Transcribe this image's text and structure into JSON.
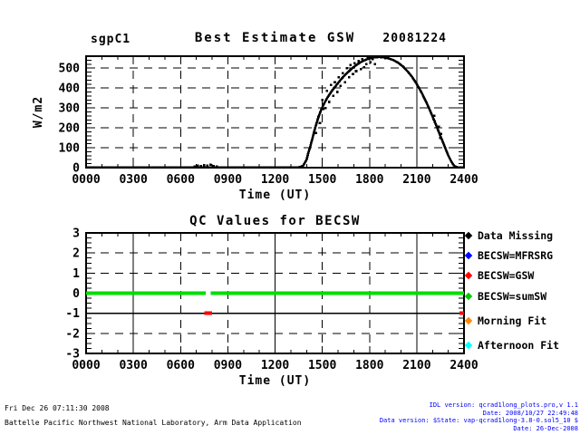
{
  "header": {
    "site": "sgpC1",
    "title": "Best Estimate GSW",
    "date": "20081224"
  },
  "top_plot": {
    "ylabel": "W/m2",
    "xlabel": "Time (UT)",
    "yticks": [
      "0",
      "100",
      "200",
      "300",
      "400",
      "500"
    ],
    "xticks": [
      "0000",
      "0300",
      "0600",
      "0900",
      "1200",
      "1500",
      "1800",
      "2100",
      "2400"
    ]
  },
  "bottom_plot": {
    "title": "QC Values for BECSW",
    "xlabel": "Time (UT)",
    "yticks": [
      "-3",
      "-2",
      "-1",
      "0",
      "1",
      "2",
      "3"
    ],
    "xticks": [
      "0000",
      "0300",
      "0600",
      "0900",
      "1200",
      "1500",
      "1800",
      "2100",
      "2400"
    ]
  },
  "legend": {
    "items": [
      {
        "label": "Data Missing",
        "color": "#000000"
      },
      {
        "label": "BECSW=MFRSRG",
        "color": "#0000FF"
      },
      {
        "label": "BECSW=GSW",
        "color": "#FF0000"
      },
      {
        "label": "BECSW=sumSW",
        "color": "#00CC00"
      },
      {
        "label": "Morning Fit",
        "color": "#FF8800"
      },
      {
        "label": "Afternoon Fit",
        "color": "#00FFFF"
      }
    ]
  },
  "footer": {
    "left_line1": "Fri Dec 26 07:11:30 2008",
    "left_line2": "Battelle Pacific Northwest National Laboratory, Arm Data Application",
    "right_color": "#0000FF",
    "right_lines": [
      "IDL version: qcrad1long_plots.pro,v 1.1",
      "Date: 2008/10/27 22:49:48",
      "Data version: $State: vap-qcrad1long-3.8-0.sol5_10 $",
      "Date: 26-Dec-2008"
    ]
  },
  "chart_data": [
    {
      "type": "line",
      "title": "Best Estimate GSW",
      "site": "sgpC1",
      "date_label": "20081224",
      "xlabel": "Time (UT)",
      "ylabel": "W/m2",
      "xlim": [
        0,
        24
      ],
      "ylim": [
        0,
        560
      ],
      "xtick_values": [
        0,
        3,
        6,
        9,
        12,
        15,
        18,
        21,
        24
      ],
      "xtick_labels": [
        "0000",
        "0300",
        "0600",
        "0900",
        "1200",
        "1500",
        "1800",
        "2100",
        "2400"
      ],
      "ytick_values": [
        0,
        100,
        200,
        300,
        400,
        500
      ],
      "ytick_labels": [
        "0",
        "100",
        "200",
        "300",
        "400",
        "500"
      ],
      "x_minor_step": 1,
      "y_minor_step": 20,
      "grid": {
        "h_dashed": [
          100,
          200,
          300,
          400,
          500
        ],
        "h_solid": [],
        "v_dashed": [
          3,
          6,
          9,
          12,
          15,
          18
        ],
        "v_solid": [
          21
        ]
      },
      "series": [
        {
          "name": "best-estimate-gsw",
          "color": "#000000",
          "width": 2.6,
          "points": [
            [
              0,
              1
            ],
            [
              13.4,
              1
            ],
            [
              13.6,
              3
            ],
            [
              13.8,
              12
            ],
            [
              14.0,
              40
            ],
            [
              14.1,
              70
            ],
            [
              14.25,
              110
            ],
            [
              14.4,
              155
            ],
            [
              14.55,
              200
            ],
            [
              14.7,
              240
            ],
            [
              14.9,
              285
            ],
            [
              15.1,
              320
            ],
            [
              15.35,
              355
            ],
            [
              15.6,
              385
            ],
            [
              15.9,
              415
            ],
            [
              16.2,
              445
            ],
            [
              16.5,
              470
            ],
            [
              16.8,
              492
            ],
            [
              17.1,
              512
            ],
            [
              17.4,
              528
            ],
            [
              17.7,
              540
            ],
            [
              18.0,
              549
            ],
            [
              18.3,
              554
            ],
            [
              18.6,
              556
            ],
            [
              18.9,
              554
            ],
            [
              19.2,
              549
            ],
            [
              19.5,
              541
            ],
            [
              19.8,
              528
            ],
            [
              20.1,
              510
            ],
            [
              20.4,
              486
            ],
            [
              20.7,
              456
            ],
            [
              21.0,
              420
            ],
            [
              21.3,
              378
            ],
            [
              21.6,
              330
            ],
            [
              21.9,
              277
            ],
            [
              22.2,
              220
            ],
            [
              22.5,
              160
            ],
            [
              22.8,
              100
            ],
            [
              23.0,
              62
            ],
            [
              23.2,
              30
            ],
            [
              23.35,
              12
            ],
            [
              23.5,
              3
            ],
            [
              23.7,
              1
            ],
            [
              24,
              1
            ]
          ]
        }
      ],
      "scatter": {
        "color": "#000000",
        "size": 2.6,
        "points": [
          [
            6.9,
            5
          ],
          [
            7.1,
            10
          ],
          [
            7.3,
            7
          ],
          [
            7.5,
            13
          ],
          [
            7.7,
            9
          ],
          [
            7.9,
            14
          ],
          [
            8.1,
            8
          ],
          [
            8.3,
            5
          ],
          [
            14.6,
            175
          ],
          [
            14.75,
            255
          ],
          [
            14.85,
            225
          ],
          [
            15.0,
            340
          ],
          [
            15.05,
            295
          ],
          [
            15.2,
            300
          ],
          [
            15.3,
            385
          ],
          [
            15.45,
            330
          ],
          [
            15.55,
            415
          ],
          [
            15.7,
            360
          ],
          [
            15.8,
            430
          ],
          [
            15.95,
            380
          ],
          [
            16.05,
            455
          ],
          [
            16.15,
            410
          ],
          [
            16.3,
            475
          ],
          [
            16.45,
            430
          ],
          [
            16.55,
            500
          ],
          [
            16.7,
            455
          ],
          [
            16.8,
            515
          ],
          [
            16.95,
            470
          ],
          [
            17.05,
            525
          ],
          [
            17.15,
            485
          ],
          [
            17.3,
            535
          ],
          [
            17.45,
            495
          ],
          [
            17.55,
            545
          ],
          [
            17.65,
            505
          ],
          [
            17.8,
            520
          ],
          [
            17.9,
            550
          ],
          [
            18.05,
            530
          ],
          [
            18.1,
            557
          ],
          [
            18.2,
            545
          ],
          [
            18.35,
            520
          ],
          [
            18.5,
            558
          ],
          [
            22.05,
            245
          ],
          [
            22.1,
            260
          ],
          [
            22.15,
            230
          ],
          [
            22.35,
            190
          ],
          [
            22.4,
            205
          ],
          [
            22.5,
            150
          ],
          [
            22.55,
            170
          ],
          [
            22.6,
            140
          ]
        ]
      }
    },
    {
      "type": "scatter",
      "title": "QC Values for BECSW",
      "xlabel": "Time (UT)",
      "ylabel": "",
      "xlim": [
        0,
        24
      ],
      "ylim": [
        -3,
        3
      ],
      "xtick_values": [
        0,
        3,
        6,
        9,
        12,
        15,
        18,
        21,
        24
      ],
      "xtick_labels": [
        "0000",
        "0300",
        "0600",
        "0900",
        "1200",
        "1500",
        "1800",
        "2100",
        "2400"
      ],
      "ytick_values": [
        -3,
        -2,
        -1,
        0,
        1,
        2,
        3
      ],
      "ytick_labels": [
        "-3",
        "-2",
        "-1",
        "0",
        "1",
        "2",
        "3"
      ],
      "x_minor_step": 1,
      "y_minor_step": 0.25,
      "grid": {
        "h_dashed": [
          -2,
          1,
          2
        ],
        "h_solid": [
          -1
        ],
        "v_dashed": [
          6,
          9,
          15,
          18
        ],
        "v_solid": [
          3,
          12,
          21
        ]
      },
      "segments": [
        {
          "name": "qc-becsw-sumsw",
          "legend": "BECSW=sumSW",
          "color": "#00DD00",
          "width": 4,
          "y": 0,
          "spans": [
            [
              0,
              7.6
            ],
            [
              7.9,
              24
            ]
          ]
        },
        {
          "name": "qc-becsw-gsw",
          "legend": "BECSW=GSW",
          "color": "#FF0000",
          "width": 4,
          "y": -1,
          "spans": [
            [
              7.5,
              8.0
            ],
            [
              23.7,
              24
            ]
          ]
        }
      ]
    }
  ]
}
